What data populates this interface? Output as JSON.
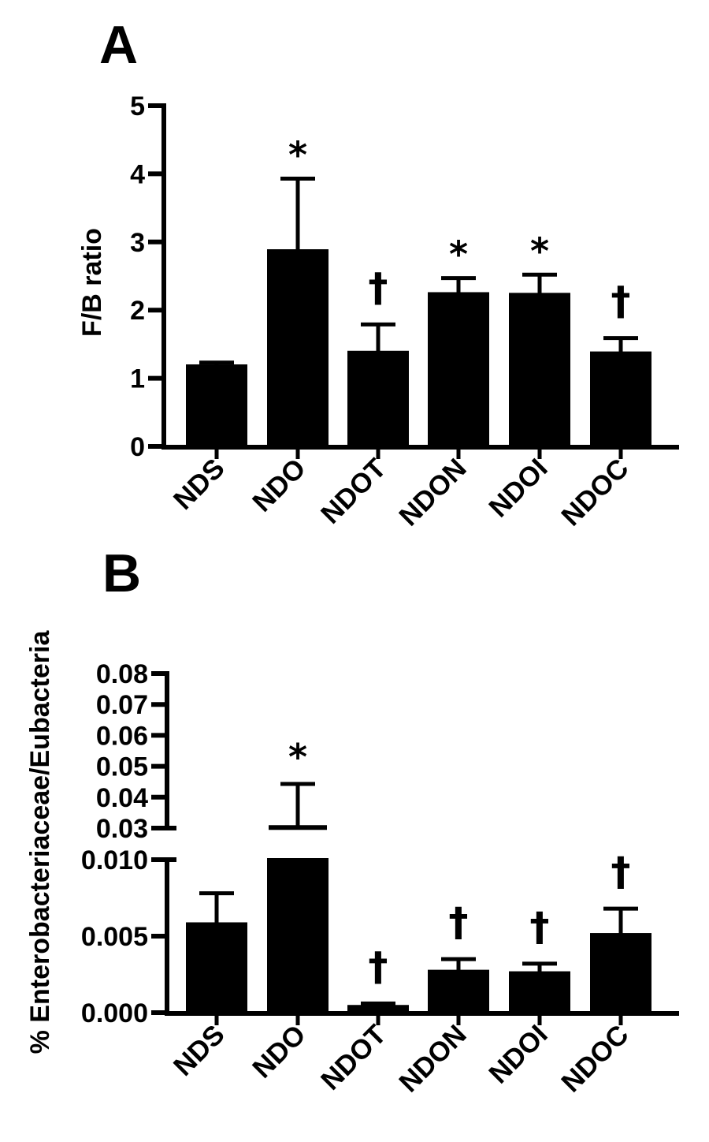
{
  "chart_data": [
    {
      "panel": "A",
      "type": "bar",
      "categories": [
        "NDS",
        "NDO",
        "NDOT",
        "NDON",
        "NDOI",
        "NDOC"
      ],
      "values": [
        1.18,
        2.87,
        1.38,
        2.24,
        2.23,
        1.37
      ],
      "error_upper": [
        1.23,
        3.93,
        1.79,
        2.47,
        2.52,
        1.59
      ],
      "annotations": [
        "",
        "*",
        "†",
        "*",
        "*",
        "†"
      ],
      "ylabel": "F/B ratio",
      "ylim": [
        0,
        5
      ],
      "yticks": [
        "0",
        "1",
        "2",
        "3",
        "4",
        "5"
      ],
      "grid": false
    },
    {
      "panel": "B",
      "type": "bar",
      "categories": [
        "NDS",
        "NDO",
        "NDOT",
        "NDON",
        "NDOI",
        "NDOC"
      ],
      "values": [
        0.0058,
        0.0302,
        0.0004,
        0.0027,
        0.0026,
        0.0051
      ],
      "error_upper": [
        0.0078,
        0.0443,
        0.0006,
        0.0035,
        0.0032,
        0.0068
      ],
      "annotations": [
        "",
        "*",
        "†",
        "†",
        "†",
        "†"
      ],
      "ylabel": "% Enterobacteriaceae/Eubacteria",
      "axis_break": true,
      "ylim_lower": [
        0,
        0.01
      ],
      "ylim_upper": [
        0.03,
        0.08
      ],
      "yticks_lower": [
        "0.000",
        "0.005",
        "0.010"
      ],
      "yticks_upper": [
        "0.03",
        "0.04",
        "0.05",
        "0.06",
        "0.07",
        "0.08"
      ],
      "grid": false
    }
  ]
}
